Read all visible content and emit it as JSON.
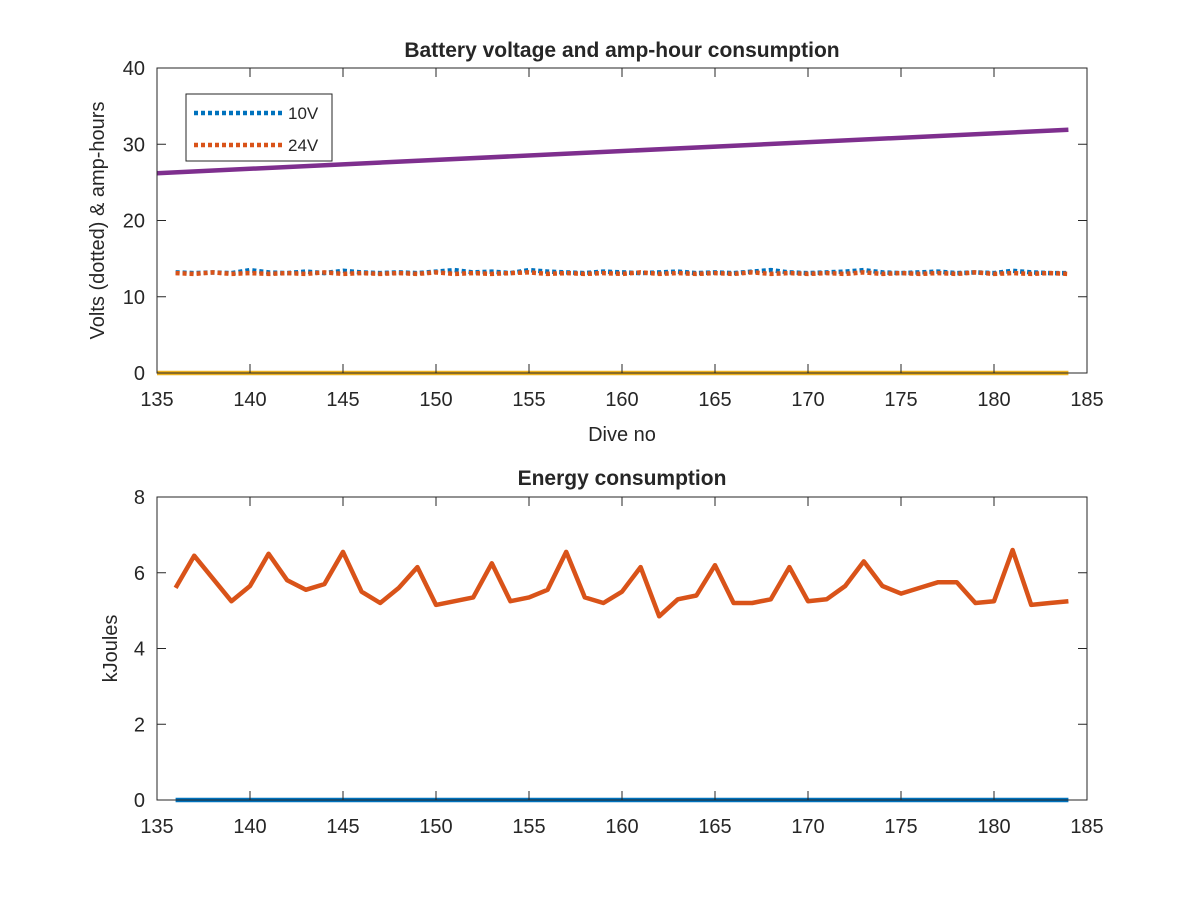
{
  "chart_data": [
    {
      "type": "line",
      "title": "Battery voltage and amp-hour consumption",
      "xlabel": "Dive no",
      "ylabel": "Volts (dotted) & amp-hours",
      "xlim": [
        135,
        185
      ],
      "ylim": [
        0,
        40
      ],
      "xticks": [
        135,
        140,
        145,
        150,
        155,
        160,
        165,
        170,
        175,
        180,
        185
      ],
      "yticks": [
        0,
        10,
        20,
        30,
        40
      ],
      "grid": false,
      "legend": {
        "placement": "top-left",
        "entries": [
          "10V",
          "24V"
        ]
      },
      "series": [
        {
          "name": "10V",
          "style": "dotted",
          "color": "#0072BD",
          "x": [
            136,
            137,
            138,
            139,
            140,
            141,
            142,
            143,
            144,
            145,
            146,
            147,
            148,
            149,
            150,
            151,
            152,
            153,
            154,
            155,
            156,
            157,
            158,
            159,
            160,
            161,
            162,
            163,
            164,
            165,
            166,
            167,
            168,
            169,
            170,
            171,
            172,
            173,
            174,
            175,
            176,
            177,
            178,
            179,
            180,
            181,
            182,
            183,
            184
          ],
          "values": [
            13.2,
            13.1,
            13.2,
            13.1,
            13.5,
            13.2,
            13.1,
            13.3,
            13.1,
            13.4,
            13.2,
            13.1,
            13.2,
            13.1,
            13.3,
            13.5,
            13.2,
            13.3,
            13.1,
            13.5,
            13.3,
            13.2,
            13.1,
            13.3,
            13.2,
            13.1,
            13.2,
            13.3,
            13.1,
            13.2,
            13.1,
            13.3,
            13.5,
            13.2,
            13.1,
            13.2,
            13.3,
            13.5,
            13.2,
            13.1,
            13.2,
            13.3,
            13.1,
            13.2,
            13.1,
            13.4,
            13.2,
            13.1,
            13.1
          ]
        },
        {
          "name": "24V",
          "style": "dotted",
          "color": "#D95319",
          "x": [
            136,
            137,
            138,
            139,
            140,
            141,
            142,
            143,
            144,
            145,
            146,
            147,
            148,
            149,
            150,
            151,
            152,
            153,
            154,
            155,
            156,
            157,
            158,
            159,
            160,
            161,
            162,
            163,
            164,
            165,
            166,
            167,
            168,
            169,
            170,
            171,
            172,
            173,
            174,
            175,
            176,
            177,
            178,
            179,
            180,
            181,
            182,
            183,
            184
          ],
          "values": [
            13.1,
            13.0,
            13.2,
            13.0,
            13.1,
            13.0,
            13.1,
            13.0,
            13.2,
            13.0,
            13.1,
            13.0,
            13.1,
            13.0,
            13.2,
            13.0,
            13.1,
            13.0,
            13.1,
            13.2,
            13.0,
            13.1,
            13.0,
            13.1,
            13.0,
            13.2,
            13.0,
            13.1,
            13.0,
            13.1,
            13.0,
            13.2,
            13.0,
            13.1,
            13.0,
            13.1,
            13.0,
            13.2,
            13.0,
            13.1,
            13.0,
            13.1,
            13.0,
            13.2,
            13.0,
            13.1,
            13.0,
            13.1,
            13.0
          ]
        },
        {
          "style": "solid",
          "color": "#7E2F8E",
          "x": [
            135,
            184
          ],
          "values": [
            26.2,
            31.9
          ]
        },
        {
          "style": "solid",
          "color": "#EDB120",
          "x": [
            135,
            184
          ],
          "values": [
            0,
            0
          ]
        }
      ]
    },
    {
      "type": "line",
      "title": "Energy consumption",
      "xlabel": "",
      "ylabel": "kJoules",
      "xlim": [
        135,
        185
      ],
      "ylim": [
        0,
        8
      ],
      "xticks": [
        135,
        140,
        145,
        150,
        155,
        160,
        165,
        170,
        175,
        180,
        185
      ],
      "yticks": [
        0,
        2,
        4,
        6,
        8
      ],
      "grid": false,
      "series": [
        {
          "style": "solid",
          "color": "#D95319",
          "x": [
            136,
            137,
            138,
            139,
            140,
            141,
            142,
            143,
            144,
            145,
            146,
            147,
            148,
            149,
            150,
            151,
            152,
            153,
            154,
            155,
            156,
            157,
            158,
            159,
            160,
            161,
            162,
            163,
            164,
            165,
            166,
            167,
            168,
            169,
            170,
            171,
            172,
            173,
            174,
            175,
            176,
            177,
            178,
            179,
            180,
            181,
            182,
            183,
            184
          ],
          "values": [
            5.6,
            6.45,
            5.85,
            5.25,
            5.65,
            6.5,
            5.8,
            5.55,
            5.7,
            6.55,
            5.5,
            5.2,
            5.6,
            6.15,
            5.15,
            5.25,
            5.35,
            6.25,
            5.25,
            5.35,
            5.55,
            6.55,
            5.35,
            5.2,
            5.5,
            6.15,
            4.85,
            5.3,
            5.4,
            6.2,
            5.2,
            5.2,
            5.3,
            6.15,
            5.25,
            5.3,
            5.65,
            6.3,
            5.65,
            5.45,
            5.6,
            5.75,
            5.75,
            5.2,
            5.25,
            6.6,
            5.15,
            5.2,
            5.25
          ]
        },
        {
          "style": "solid",
          "color": "#0072BD",
          "x": [
            136,
            184
          ],
          "values": [
            0,
            0
          ]
        }
      ]
    }
  ]
}
